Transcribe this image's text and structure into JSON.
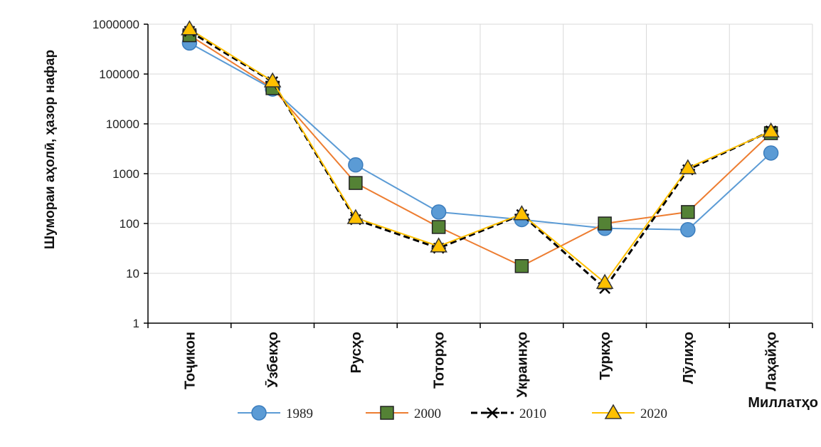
{
  "chart_data": {
    "type": "line",
    "ylabel": "Шумораи аҳолӣ, ҳазор нафар",
    "xlabel": "Миллатҳо",
    "yscale": "log",
    "ylim": [
      1,
      1000000
    ],
    "yticks": [
      "1",
      "10",
      "100",
      "1000",
      "10000",
      "100000",
      "1000000"
    ],
    "categories": [
      "Тоҷикон",
      "Ӯзбекҳо",
      "Русҳо",
      "Тоторҳо",
      "Украинҳо",
      "Туркҳо",
      "Лӯлиҳо",
      "Лаҳайҳо"
    ],
    "grid": true,
    "legend_position": "bottom",
    "series": [
      {
        "name": "1989",
        "color": "#5b9bd5",
        "line_style": "solid",
        "marker": "circle",
        "values": [
          420000,
          50000,
          1500,
          170,
          120,
          80,
          75,
          2600
        ]
      },
      {
        "name": "2000",
        "color": "#ed7d31",
        "marker_fill": "#548235",
        "line_style": "solid",
        "marker": "square",
        "values": [
          600000,
          52000,
          650,
          85,
          14,
          100,
          170,
          6500
        ]
      },
      {
        "name": "2010",
        "color": "#000000",
        "line_style": "dashed",
        "marker": "asterisk",
        "values": [
          720000,
          70000,
          120,
          32,
          150,
          5,
          1200,
          7200
        ]
      },
      {
        "name": "2020",
        "color": "#ffc000",
        "marker_fill": "#ffc000",
        "line_style": "solid",
        "marker": "triangle",
        "values": [
          800000,
          72000,
          130,
          35,
          155,
          6.5,
          1300,
          7100
        ]
      }
    ]
  }
}
